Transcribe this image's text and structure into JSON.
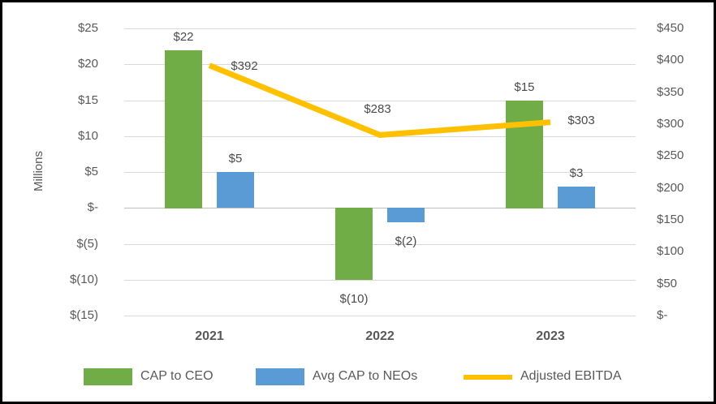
{
  "chart_data": {
    "type": "combo",
    "title": "",
    "categories": [
      "2021",
      "2022",
      "2023"
    ],
    "series": [
      {
        "name": "CAP to CEO",
        "kind": "bar",
        "axis": "left",
        "color": "#70AD47",
        "values": [
          22,
          -10,
          15
        ],
        "data_labels": [
          "$22",
          "$(10)",
          "$15"
        ]
      },
      {
        "name": "Avg CAP to NEOs",
        "kind": "bar",
        "axis": "left",
        "color": "#5B9BD5",
        "values": [
          5,
          -2,
          3
        ],
        "data_labels": [
          "$5",
          "$(2)",
          "$3"
        ]
      },
      {
        "name": "Adjusted EBITDA",
        "kind": "line",
        "axis": "right",
        "color": "#FFC000",
        "values": [
          392,
          283,
          303
        ],
        "data_labels": [
          "$392",
          "$283",
          "$303"
        ]
      }
    ],
    "left_axis": {
      "title": "Millions",
      "range": [
        -15,
        25
      ],
      "tick_step": 5,
      "tick_labels": [
        "$25",
        "$20",
        "$15",
        "$10",
        "$5",
        "$-",
        "$(5)",
        "$(10)",
        "$(15)"
      ]
    },
    "right_axis": {
      "range": [
        0,
        450
      ],
      "tick_step": 50,
      "tick_labels": [
        "$450",
        "$400",
        "$350",
        "$300",
        "$250",
        "$200",
        "$150",
        "$100",
        "$50",
        "$-"
      ]
    },
    "legend": {
      "position": "bottom",
      "entries": [
        "CAP to CEO",
        "Avg CAP to NEOs",
        "Adjusted EBITDA"
      ]
    },
    "grid": true
  },
  "colors": {
    "grid": "#D9D9D9",
    "zero_axis": "#BFBFBF",
    "tick_text": "#595959",
    "data_label_text": "#4a4a4a",
    "background": "#FFFFFF",
    "border": "#000000"
  }
}
